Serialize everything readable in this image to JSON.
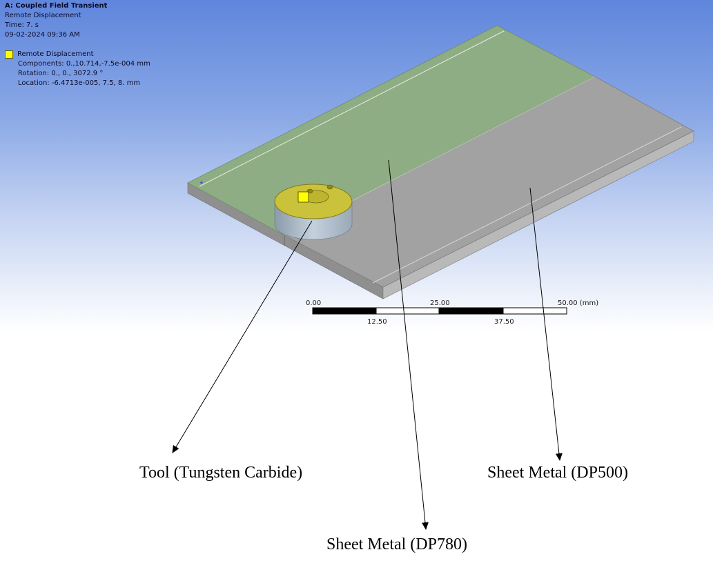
{
  "info": {
    "title": "A: Coupled Field Transient",
    "type": "Remote Displacement",
    "time": "Time: 7. s",
    "date": "09-02-2024 09:36 AM"
  },
  "legend": {
    "label": "Remote Displacement",
    "swatch_color": "#ffff00",
    "components": "Components: 0.,10.714,-7.5e-004 mm",
    "rotation": "Rotation: 0., 0., 3072.9 °",
    "location": "Location: -6.4713e-005, 7.5, 8. mm"
  },
  "scale": {
    "top_labels": [
      "0.00",
      "25.00",
      "50.00 (mm)"
    ],
    "bottom_labels": [
      "12.50",
      "37.50"
    ]
  },
  "captions": {
    "tool": "Tool (Tungsten Carbide)",
    "dp500": "Sheet Metal (DP500)",
    "dp780": "Sheet Metal (DP780)"
  },
  "colors": {
    "dp780_plate": "#8ead84",
    "dp500_plate": "#a2a2a2",
    "tool_face": "#c9c23a",
    "tool_side": "#a9b7c6"
  }
}
